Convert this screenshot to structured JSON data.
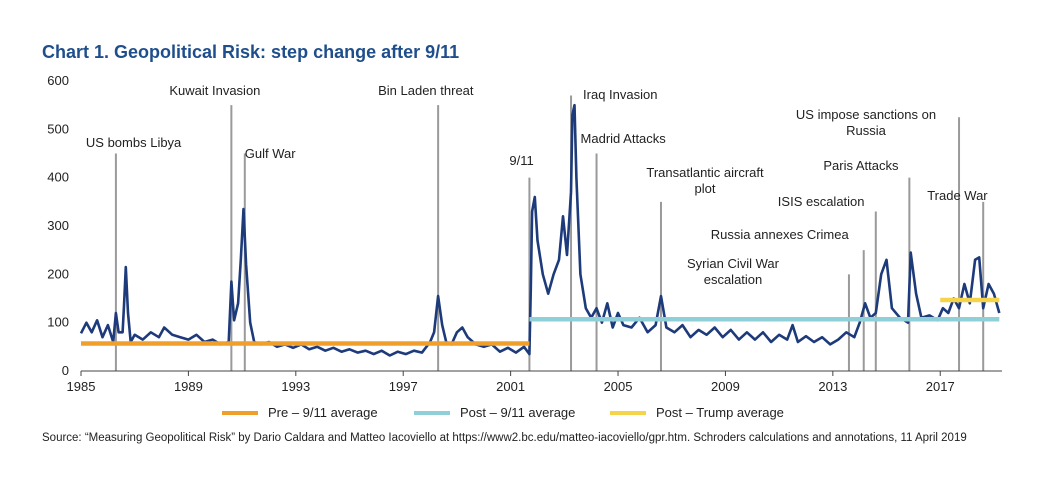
{
  "title": "Chart 1. Geopolitical Risk:  step change after 9/11",
  "source": "Source: “Measuring Geopolitical Risk” by Dario Caldara and Matteo Iacoviello at https://www2.bc.edu/matteo-iacoviello/gpr.htm. Schroders calculations and annotations, 11 April 2019",
  "colors": {
    "series": "#1d3a7a",
    "pre_avg": "#f0a02a",
    "post_avg": "#8fd0d8",
    "trump_avg": "#f5d44a",
    "event_line": "#9a9a9a"
  },
  "legend": [
    {
      "label": "Pre – 9/11 average",
      "color": "#f0a02a"
    },
    {
      "label": "Post – 9/11 average",
      "color": "#8fd0d8"
    },
    {
      "label": "Post – Trump average",
      "color": "#f5d44a"
    }
  ],
  "chart_data": {
    "type": "line",
    "title": "Chart 1. Geopolitical Risk:  step change after 9/11",
    "xlim": [
      1985,
      2019.3
    ],
    "ylim": [
      0,
      600
    ],
    "x_ticks": [
      1985,
      1989,
      1993,
      1997,
      2001,
      2005,
      2009,
      2013,
      2017
    ],
    "y_ticks": [
      0,
      100,
      200,
      300,
      400,
      500,
      600
    ],
    "grid": false,
    "legend_position": "bottom",
    "series": [
      {
        "values": [
          [
            1985.0,
            78
          ],
          [
            1985.2,
            100
          ],
          [
            1985.4,
            80
          ],
          [
            1985.6,
            105
          ],
          [
            1985.8,
            70
          ],
          [
            1986.0,
            95
          ],
          [
            1986.2,
            60
          ],
          [
            1986.3,
            120
          ],
          [
            1986.4,
            80
          ],
          [
            1986.55,
            80
          ],
          [
            1986.6,
            135
          ],
          [
            1986.67,
            215
          ],
          [
            1986.75,
            120
          ],
          [
            1986.85,
            60
          ],
          [
            1987.0,
            75
          ],
          [
            1987.3,
            65
          ],
          [
            1987.6,
            80
          ],
          [
            1987.9,
            70
          ],
          [
            1988.1,
            90
          ],
          [
            1988.4,
            75
          ],
          [
            1988.7,
            70
          ],
          [
            1989.0,
            65
          ],
          [
            1989.3,
            75
          ],
          [
            1989.6,
            60
          ],
          [
            1989.9,
            65
          ],
          [
            1990.2,
            55
          ],
          [
            1990.5,
            60
          ],
          [
            1990.6,
            185
          ],
          [
            1990.7,
            105
          ],
          [
            1990.85,
            140
          ],
          [
            1990.95,
            230
          ],
          [
            1991.05,
            335
          ],
          [
            1991.15,
            220
          ],
          [
            1991.3,
            100
          ],
          [
            1991.45,
            60
          ],
          [
            1991.7,
            55
          ],
          [
            1992.0,
            60
          ],
          [
            1992.3,
            50
          ],
          [
            1992.6,
            55
          ],
          [
            1992.9,
            48
          ],
          [
            1993.2,
            55
          ],
          [
            1993.5,
            45
          ],
          [
            1993.8,
            50
          ],
          [
            1994.1,
            42
          ],
          [
            1994.4,
            48
          ],
          [
            1994.7,
            40
          ],
          [
            1995.0,
            45
          ],
          [
            1995.3,
            38
          ],
          [
            1995.6,
            42
          ],
          [
            1995.9,
            35
          ],
          [
            1996.2,
            42
          ],
          [
            1996.5,
            32
          ],
          [
            1996.8,
            40
          ],
          [
            1997.1,
            35
          ],
          [
            1997.4,
            42
          ],
          [
            1997.7,
            38
          ],
          [
            1998.0,
            60
          ],
          [
            1998.15,
            80
          ],
          [
            1998.3,
            155
          ],
          [
            1998.45,
            95
          ],
          [
            1998.6,
            60
          ],
          [
            1998.8,
            55
          ],
          [
            1999.0,
            80
          ],
          [
            1999.2,
            90
          ],
          [
            1999.4,
            70
          ],
          [
            1999.7,
            55
          ],
          [
            2000.0,
            50
          ],
          [
            2000.3,
            55
          ],
          [
            2000.6,
            40
          ],
          [
            2000.9,
            48
          ],
          [
            2001.2,
            38
          ],
          [
            2001.5,
            50
          ],
          [
            2001.7,
            35
          ],
          [
            2001.75,
            170
          ],
          [
            2001.8,
            330
          ],
          [
            2001.9,
            360
          ],
          [
            2002.0,
            270
          ],
          [
            2002.2,
            200
          ],
          [
            2002.4,
            160
          ],
          [
            2002.6,
            200
          ],
          [
            2002.8,
            230
          ],
          [
            2002.95,
            320
          ],
          [
            2003.1,
            240
          ],
          [
            2003.25,
            370
          ],
          [
            2003.3,
            530
          ],
          [
            2003.38,
            550
          ],
          [
            2003.45,
            400
          ],
          [
            2003.6,
            200
          ],
          [
            2003.8,
            130
          ],
          [
            2004.0,
            110
          ],
          [
            2004.2,
            130
          ],
          [
            2004.4,
            100
          ],
          [
            2004.6,
            140
          ],
          [
            2004.8,
            90
          ],
          [
            2005.0,
            120
          ],
          [
            2005.2,
            95
          ],
          [
            2005.5,
            90
          ],
          [
            2005.8,
            110
          ],
          [
            2006.1,
            80
          ],
          [
            2006.4,
            95
          ],
          [
            2006.6,
            155
          ],
          [
            2006.8,
            90
          ],
          [
            2007.1,
            80
          ],
          [
            2007.4,
            95
          ],
          [
            2007.7,
            70
          ],
          [
            2008.0,
            85
          ],
          [
            2008.3,
            75
          ],
          [
            2008.6,
            90
          ],
          [
            2008.9,
            70
          ],
          [
            2009.2,
            85
          ],
          [
            2009.5,
            65
          ],
          [
            2009.8,
            80
          ],
          [
            2010.1,
            65
          ],
          [
            2010.4,
            80
          ],
          [
            2010.7,
            60
          ],
          [
            2011.0,
            75
          ],
          [
            2011.3,
            65
          ],
          [
            2011.5,
            95
          ],
          [
            2011.7,
            60
          ],
          [
            2012.0,
            72
          ],
          [
            2012.3,
            60
          ],
          [
            2012.6,
            70
          ],
          [
            2012.9,
            55
          ],
          [
            2013.2,
            65
          ],
          [
            2013.5,
            80
          ],
          [
            2013.8,
            70
          ],
          [
            2014.0,
            100
          ],
          [
            2014.2,
            140
          ],
          [
            2014.4,
            110
          ],
          [
            2014.6,
            120
          ],
          [
            2014.8,
            200
          ],
          [
            2015.0,
            230
          ],
          [
            2015.2,
            130
          ],
          [
            2015.5,
            110
          ],
          [
            2015.8,
            100
          ],
          [
            2015.9,
            245
          ],
          [
            2016.1,
            160
          ],
          [
            2016.3,
            110
          ],
          [
            2016.6,
            115
          ],
          [
            2016.9,
            105
          ],
          [
            2017.1,
            130
          ],
          [
            2017.3,
            120
          ],
          [
            2017.5,
            150
          ],
          [
            2017.7,
            130
          ],
          [
            2017.9,
            180
          ],
          [
            2018.1,
            140
          ],
          [
            2018.3,
            230
          ],
          [
            2018.45,
            235
          ],
          [
            2018.6,
            130
          ],
          [
            2018.8,
            180
          ],
          [
            2019.0,
            160
          ],
          [
            2019.2,
            120
          ]
        ]
      }
    ],
    "averages": [
      {
        "name": "Pre – 9/11 average",
        "x": [
          1985,
          2001.7
        ],
        "y": 57
      },
      {
        "name": "Post – 9/11 average",
        "x": [
          2001.7,
          2019.2
        ],
        "y": 107
      },
      {
        "name": "Post – Trump average",
        "x": [
          2017.0,
          2019.2
        ],
        "y": 147
      }
    ],
    "events": [
      {
        "label": "US bombs Libya",
        "x": 1986.3,
        "top": 450
      },
      {
        "label": "Kuwait Invasion",
        "x": 1990.6,
        "top": 550
      },
      {
        "label": "Gulf War",
        "x": 1991.1,
        "top": 450
      },
      {
        "label": "Bin Laden threat",
        "x": 1998.3,
        "top": 550
      },
      {
        "label": "9/11",
        "x": 2001.7,
        "top": 400
      },
      {
        "label": "Iraq Invasion",
        "x": 2003.25,
        "top": 570
      },
      {
        "label": "Madrid Attacks",
        "x": 2004.2,
        "top": 450
      },
      {
        "label": "Transatlantic aircraft",
        "label2": "plot",
        "x": 2006.6,
        "top": 350
      },
      {
        "label": "Syrian Civil War",
        "label2": "escalation",
        "x": 2013.6,
        "top": 200
      },
      {
        "label": "Russia annexes Crimea",
        "x": 2014.15,
        "top": 250
      },
      {
        "label": "ISIS escalation",
        "x": 2014.6,
        "top": 330
      },
      {
        "label": "Paris Attacks",
        "x": 2015.85,
        "top": 400
      },
      {
        "label": "US impose sanctions on",
        "label2": "Russia",
        "x": 2017.7,
        "top": 525
      },
      {
        "label": "Trade War",
        "x": 2018.6,
        "top": 350
      }
    ]
  }
}
